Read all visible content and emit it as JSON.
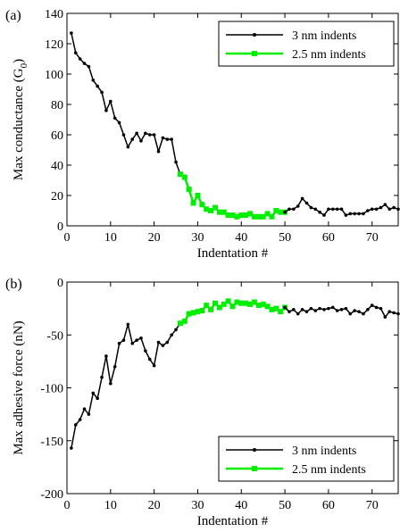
{
  "colors": {
    "black_series": "#000000",
    "green_series": "#00ee00",
    "axis": "#000000",
    "background": "#ffffff"
  },
  "chart_data": [
    {
      "type": "line",
      "panel_label": "(a)",
      "xlabel": "Indentation #",
      "ylabel_main": "Max conductance (G",
      "ylabel_sub": "0",
      "ylabel_close": ")",
      "xlim": [
        0,
        76
      ],
      "ylim": [
        0,
        140
      ],
      "xticks": [
        0,
        10,
        20,
        30,
        40,
        50,
        60,
        70
      ],
      "yticks": [
        0,
        20,
        40,
        60,
        80,
        100,
        120,
        140
      ],
      "grid": false,
      "legend_position": "top-right",
      "legend": [
        "3 nm indents",
        "2.5 nm indents"
      ],
      "series": [
        {
          "name": "3 nm indents",
          "color": "#000000",
          "marker": "dot",
          "x": [
            1,
            2,
            3,
            4,
            5,
            6,
            7,
            8,
            9,
            10,
            11,
            12,
            13,
            14,
            15,
            16,
            17,
            18,
            19,
            20,
            21,
            22,
            23,
            24,
            25,
            26
          ],
          "y": [
            127,
            114,
            110,
            107,
            105,
            96,
            92,
            88,
            76,
            82,
            71,
            68,
            60,
            52,
            57,
            61,
            56,
            61,
            60,
            60,
            49,
            58,
            57,
            57,
            42,
            34
          ]
        },
        {
          "name": "2.5 nm indents",
          "color": "#00ee00",
          "marker": "square",
          "x": [
            26,
            27,
            28,
            29,
            30,
            31,
            32,
            33,
            34,
            35,
            36,
            37,
            38,
            39,
            40,
            41,
            42,
            43,
            44,
            45,
            46,
            47,
            48,
            49,
            50
          ],
          "y": [
            34,
            32,
            24,
            15,
            20,
            14,
            11,
            10,
            12,
            9,
            9,
            7,
            7,
            6,
            7,
            7,
            8,
            6,
            6,
            6,
            8,
            6,
            10,
            9,
            9
          ]
        },
        {
          "name": "3 nm indents",
          "color": "#000000",
          "marker": "dot",
          "x": [
            50,
            51,
            52,
            53,
            54,
            55,
            56,
            57,
            58,
            59,
            60,
            61,
            62,
            63,
            64,
            65,
            66,
            67,
            68,
            69,
            70,
            71,
            72,
            73,
            74,
            75,
            76
          ],
          "y": [
            9,
            11,
            11,
            13,
            18,
            15,
            12,
            11,
            9,
            7,
            11,
            11,
            11,
            11,
            7,
            8,
            8,
            8,
            8,
            10,
            11,
            11,
            12,
            14,
            11,
            12,
            11
          ]
        }
      ]
    },
    {
      "type": "line",
      "panel_label": "(b)",
      "xlabel": "Indentation #",
      "ylabel": "Max adhesive force (nN)",
      "xlim": [
        0,
        76
      ],
      "ylim": [
        -200,
        0
      ],
      "xticks": [
        0,
        10,
        20,
        30,
        40,
        50,
        60,
        70
      ],
      "yticks": [
        -200,
        -150,
        -100,
        -50,
        0
      ],
      "grid": false,
      "legend_position": "bottom-right",
      "legend": [
        "3 nm indents",
        "2.5 nm indents"
      ],
      "series": [
        {
          "name": "3 nm indents",
          "color": "#000000",
          "marker": "dot",
          "x": [
            1,
            2,
            3,
            4,
            5,
            6,
            7,
            8,
            9,
            10,
            11,
            12,
            13,
            14,
            15,
            16,
            17,
            18,
            19,
            20,
            21,
            22,
            23,
            24,
            25,
            26
          ],
          "y": [
            -157,
            -135,
            -130,
            -120,
            -125,
            -105,
            -110,
            -90,
            -70,
            -96,
            -80,
            -58,
            -55,
            -40,
            -58,
            -55,
            -53,
            -65,
            -73,
            -79,
            -57,
            -60,
            -57,
            -50,
            -45,
            -39
          ]
        },
        {
          "name": "2.5 nm indents",
          "color": "#00ee00",
          "marker": "square",
          "x": [
            26,
            27,
            28,
            29,
            30,
            31,
            32,
            33,
            34,
            35,
            36,
            37,
            38,
            39,
            40,
            41,
            42,
            43,
            44,
            45,
            46,
            47,
            48,
            49,
            50
          ],
          "y": [
            -39,
            -37,
            -30,
            -29,
            -28,
            -27,
            -22,
            -26,
            -20,
            -24,
            -21,
            -18,
            -23,
            -19,
            -20,
            -20,
            -21,
            -19,
            -22,
            -21,
            -23,
            -26,
            -25,
            -28,
            -24
          ]
        },
        {
          "name": "3 nm indents",
          "color": "#000000",
          "marker": "dot",
          "x": [
            50,
            51,
            52,
            53,
            54,
            55,
            56,
            57,
            58,
            59,
            60,
            61,
            62,
            63,
            64,
            65,
            66,
            67,
            68,
            69,
            70,
            71,
            72,
            73,
            74,
            75,
            76
          ],
          "y": [
            -24,
            -28,
            -26,
            -30,
            -26,
            -28,
            -25,
            -27,
            -25,
            -26,
            -25,
            -24,
            -27,
            -26,
            -25,
            -30,
            -27,
            -28,
            -30,
            -26,
            -22,
            -24,
            -25,
            -33,
            -28,
            -29,
            -30
          ]
        }
      ]
    }
  ]
}
